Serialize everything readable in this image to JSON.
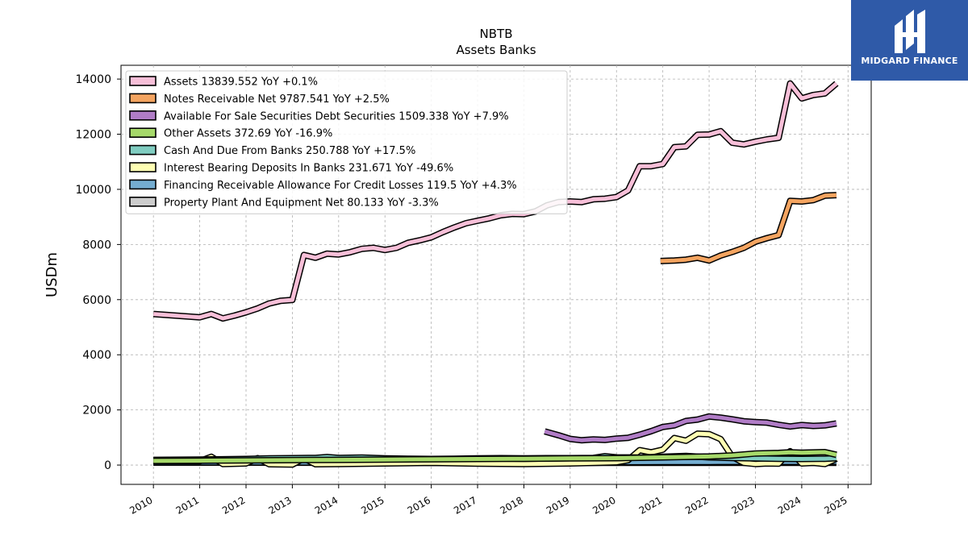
{
  "brand": {
    "name": "MIDGARD FINANCE",
    "color": "#2f5aa8"
  },
  "chart_data": {
    "type": "line",
    "title": "NBTB",
    "subtitle": "Assets Banks",
    "xlabel": "",
    "ylabel": "USDm",
    "xlim": [
      2009.3,
      2025.5
    ],
    "ylim": [
      -700,
      14500
    ],
    "yticks": [
      0,
      2000,
      4000,
      6000,
      8000,
      10000,
      12000,
      14000
    ],
    "xticks": [
      "2010",
      "2011",
      "2012",
      "2013",
      "2014",
      "2015",
      "2016",
      "2017",
      "2018",
      "2019",
      "2020",
      "2021",
      "2022",
      "2023",
      "2024",
      "2025"
    ],
    "grid": true,
    "legend_position": "top-left",
    "series": [
      {
        "name": "Assets",
        "legend": "Assets  13839.552 YoY +0.1%",
        "color": "#f7bfd8",
        "points": [
          [
            2010.0,
            5480
          ],
          [
            2011.0,
            5360
          ],
          [
            2011.25,
            5480
          ],
          [
            2011.5,
            5320
          ],
          [
            2011.75,
            5420
          ],
          [
            2012.0,
            5540
          ],
          [
            2012.25,
            5680
          ],
          [
            2012.5,
            5860
          ],
          [
            2012.75,
            5960
          ],
          [
            2013.0,
            5990
          ],
          [
            2013.25,
            7620
          ],
          [
            2013.5,
            7520
          ],
          [
            2013.75,
            7670
          ],
          [
            2014.0,
            7640
          ],
          [
            2014.25,
            7720
          ],
          [
            2014.5,
            7840
          ],
          [
            2014.75,
            7880
          ],
          [
            2015.0,
            7800
          ],
          [
            2015.25,
            7880
          ],
          [
            2015.5,
            8060
          ],
          [
            2015.75,
            8150
          ],
          [
            2016.0,
            8260
          ],
          [
            2016.25,
            8450
          ],
          [
            2016.5,
            8620
          ],
          [
            2016.75,
            8770
          ],
          [
            2017.0,
            8860
          ],
          [
            2017.25,
            8950
          ],
          [
            2017.5,
            9060
          ],
          [
            2017.75,
            9110
          ],
          [
            2018.0,
            9100
          ],
          [
            2018.25,
            9200
          ],
          [
            2018.5,
            9420
          ],
          [
            2018.75,
            9540
          ],
          [
            2019.0,
            9560
          ],
          [
            2019.25,
            9540
          ],
          [
            2019.5,
            9640
          ],
          [
            2019.75,
            9660
          ],
          [
            2020.0,
            9720
          ],
          [
            2020.25,
            9960
          ],
          [
            2020.5,
            10840
          ],
          [
            2020.75,
            10840
          ],
          [
            2021.0,
            10920
          ],
          [
            2021.25,
            11530
          ],
          [
            2021.5,
            11560
          ],
          [
            2021.75,
            11980
          ],
          [
            2022.0,
            11990
          ],
          [
            2022.25,
            12110
          ],
          [
            2022.5,
            11690
          ],
          [
            2022.75,
            11630
          ],
          [
            2023.0,
            11730
          ],
          [
            2023.25,
            11810
          ],
          [
            2023.5,
            11870
          ],
          [
            2023.75,
            13840
          ],
          [
            2024.0,
            13300
          ],
          [
            2024.25,
            13420
          ],
          [
            2024.5,
            13480
          ],
          [
            2024.75,
            13840
          ]
        ]
      },
      {
        "name": "Notes Receivable Net",
        "legend": "Notes Receivable Net  9787.541 YoY +2.5%",
        "color": "#f4a460",
        "points": [
          [
            2020.95,
            7400
          ],
          [
            2021.25,
            7420
          ],
          [
            2021.5,
            7450
          ],
          [
            2021.75,
            7520
          ],
          [
            2022.0,
            7420
          ],
          [
            2022.25,
            7600
          ],
          [
            2022.5,
            7730
          ],
          [
            2022.75,
            7880
          ],
          [
            2023.0,
            8100
          ],
          [
            2023.25,
            8230
          ],
          [
            2023.5,
            8340
          ],
          [
            2023.75,
            9580
          ],
          [
            2024.0,
            9560
          ],
          [
            2024.25,
            9610
          ],
          [
            2024.5,
            9770
          ],
          [
            2024.75,
            9790
          ]
        ]
      },
      {
        "name": "Available For Sale Securities Debt Securities",
        "legend": "Available For Sale Securities Debt Securities  1509.338 YoY +7.9%",
        "color": "#b07cc6",
        "points": [
          [
            2018.45,
            1220
          ],
          [
            2018.75,
            1080
          ],
          [
            2019.0,
            950
          ],
          [
            2019.25,
            900
          ],
          [
            2019.5,
            930
          ],
          [
            2019.75,
            910
          ],
          [
            2020.0,
            960
          ],
          [
            2020.25,
            990
          ],
          [
            2020.5,
            1100
          ],
          [
            2020.75,
            1230
          ],
          [
            2021.0,
            1380
          ],
          [
            2021.25,
            1440
          ],
          [
            2021.5,
            1600
          ],
          [
            2021.75,
            1650
          ],
          [
            2022.0,
            1760
          ],
          [
            2022.25,
            1720
          ],
          [
            2022.5,
            1660
          ],
          [
            2022.75,
            1590
          ],
          [
            2023.0,
            1560
          ],
          [
            2023.25,
            1540
          ],
          [
            2023.5,
            1460
          ],
          [
            2023.75,
            1400
          ],
          [
            2024.0,
            1450
          ],
          [
            2024.25,
            1420
          ],
          [
            2024.5,
            1440
          ],
          [
            2024.75,
            1509
          ]
        ]
      },
      {
        "name": "Other Assets",
        "legend": "Other Assets  372.69 YoY -16.9%",
        "color": "#a6d96a",
        "points": [
          [
            2010.0,
            150
          ],
          [
            2011.0,
            160
          ],
          [
            2012.0,
            170
          ],
          [
            2013.0,
            180
          ],
          [
            2014.0,
            190
          ],
          [
            2015.0,
            200
          ],
          [
            2016.0,
            210
          ],
          [
            2017.0,
            220
          ],
          [
            2018.0,
            230
          ],
          [
            2019.0,
            240
          ],
          [
            2020.0,
            250
          ],
          [
            2021.0,
            280
          ],
          [
            2022.0,
            310
          ],
          [
            2022.5,
            350
          ],
          [
            2023.0,
            420
          ],
          [
            2023.5,
            440
          ],
          [
            2023.75,
            460
          ],
          [
            2024.0,
            450
          ],
          [
            2024.5,
            470
          ],
          [
            2024.75,
            373
          ]
        ]
      },
      {
        "name": "Cash And Due From Banks",
        "legend": "Cash And Due From Banks  250.788 YoY +17.5%",
        "color": "#80cdc1",
        "points": [
          [
            2010.0,
            190
          ],
          [
            2011.0,
            200
          ],
          [
            2011.5,
            210
          ],
          [
            2012.0,
            220
          ],
          [
            2012.5,
            240
          ],
          [
            2013.0,
            250
          ],
          [
            2013.5,
            260
          ],
          [
            2013.75,
            290
          ],
          [
            2014.0,
            260
          ],
          [
            2014.5,
            270
          ],
          [
            2015.0,
            240
          ],
          [
            2015.5,
            230
          ],
          [
            2016.0,
            220
          ],
          [
            2016.5,
            230
          ],
          [
            2017.0,
            240
          ],
          [
            2017.5,
            250
          ],
          [
            2018.0,
            240
          ],
          [
            2018.5,
            250
          ],
          [
            2019.0,
            250
          ],
          [
            2019.5,
            260
          ],
          [
            2019.75,
            320
          ],
          [
            2020.0,
            280
          ],
          [
            2020.5,
            270
          ],
          [
            2021.0,
            300
          ],
          [
            2021.5,
            330
          ],
          [
            2022.0,
            280
          ],
          [
            2022.5,
            260
          ],
          [
            2023.0,
            240
          ],
          [
            2023.5,
            230
          ],
          [
            2024.0,
            220
          ],
          [
            2024.5,
            230
          ],
          [
            2024.75,
            251
          ]
        ]
      },
      {
        "name": "Interest Bearing Deposits In Banks",
        "legend": "Interest Bearing Deposits In Banks  231.671 YoY -49.6%",
        "color": "#ffffb3",
        "points": [
          [
            2010.0,
            150
          ],
          [
            2011.0,
            140
          ],
          [
            2011.25,
            300
          ],
          [
            2011.5,
            40
          ],
          [
            2012.0,
            60
          ],
          [
            2012.25,
            250
          ],
          [
            2012.5,
            30
          ],
          [
            2013.0,
            20
          ],
          [
            2013.25,
            240
          ],
          [
            2013.5,
            30
          ],
          [
            2014.0,
            40
          ],
          [
            2015.0,
            60
          ],
          [
            2016.0,
            80
          ],
          [
            2017.0,
            50
          ],
          [
            2018.0,
            40
          ],
          [
            2019.0,
            60
          ],
          [
            2020.0,
            100
          ],
          [
            2020.25,
            180
          ],
          [
            2020.5,
            540
          ],
          [
            2020.75,
            460
          ],
          [
            2021.0,
            560
          ],
          [
            2021.25,
            980
          ],
          [
            2021.5,
            880
          ],
          [
            2021.75,
            1140
          ],
          [
            2022.0,
            1120
          ],
          [
            2022.25,
            940
          ],
          [
            2022.5,
            300
          ],
          [
            2022.75,
            80
          ],
          [
            2023.0,
            40
          ],
          [
            2023.25,
            60
          ],
          [
            2023.5,
            50
          ],
          [
            2023.75,
            500
          ],
          [
            2024.0,
            60
          ],
          [
            2024.25,
            80
          ],
          [
            2024.5,
            40
          ],
          [
            2024.75,
            232
          ]
        ]
      },
      {
        "name": "Financing Receivable Allowance For Credit Losses",
        "legend": "Financing Receivable Allowance For Credit Losses  119.5 YoY +4.3%",
        "color": "#74add1",
        "points": [
          [
            2010.0,
            100
          ],
          [
            2012.0,
            95
          ],
          [
            2014.0,
            90
          ],
          [
            2016.0,
            88
          ],
          [
            2018.0,
            90
          ],
          [
            2019.0,
            95
          ],
          [
            2020.0,
            105
          ],
          [
            2021.0,
            110
          ],
          [
            2022.0,
            112
          ],
          [
            2023.0,
            115
          ],
          [
            2024.0,
            116
          ],
          [
            2024.75,
            120
          ]
        ]
      },
      {
        "name": "Property Plant And Equipment Net",
        "legend": "Property Plant And Equipment Net  80.133 YoY -3.3%",
        "color": "#cccccc",
        "points": [
          [
            2010.0,
            90
          ],
          [
            2012.0,
            88
          ],
          [
            2014.0,
            85
          ],
          [
            2016.0,
            83
          ],
          [
            2018.0,
            82
          ],
          [
            2020.0,
            83
          ],
          [
            2022.0,
            84
          ],
          [
            2024.0,
            82
          ],
          [
            2024.75,
            80
          ]
        ]
      }
    ]
  }
}
